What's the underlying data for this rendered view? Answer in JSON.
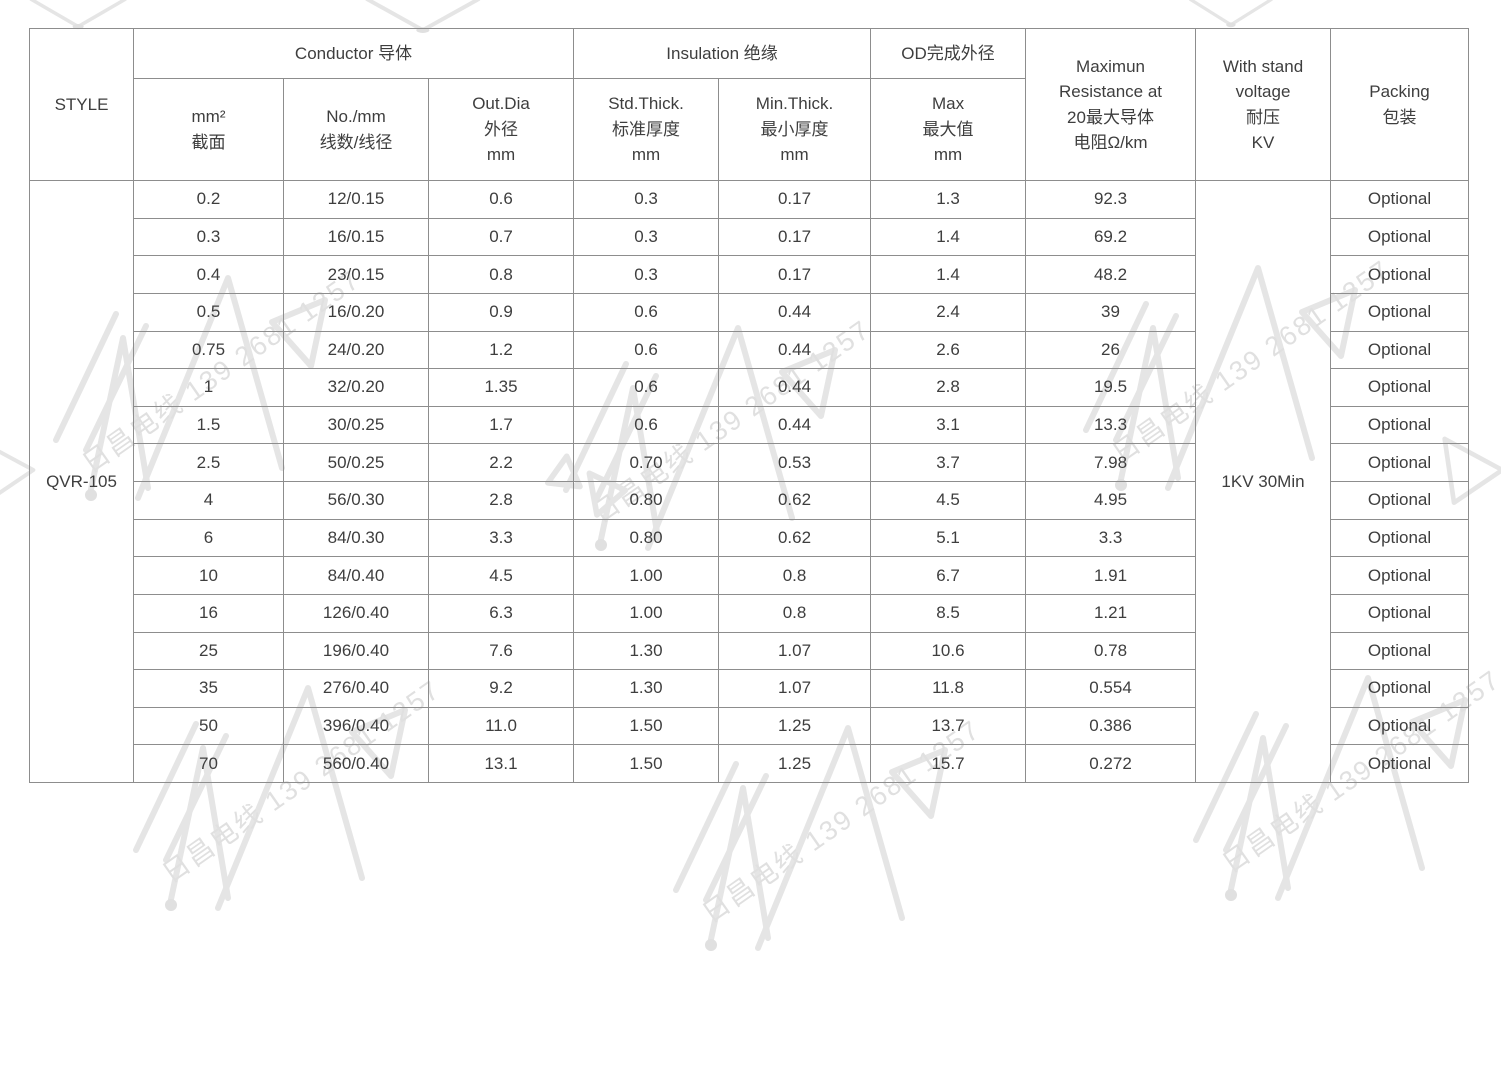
{
  "watermark": {
    "text": "日昌电线 139 2681 1257",
    "color": "#e0e0e0"
  },
  "table": {
    "header": {
      "style": "STYLE",
      "conductor_group": "Conductor 导体",
      "insulation_group": "Insulation 绝缘",
      "od_group": "OD完成外径",
      "mm2": "mm²\n截面",
      "no_mm": "No./mm\n线数/线径",
      "out_dia": "Out.Dia\n外径\nmm",
      "std_thick": "Std.Thick.\n标准厚度\nmm",
      "min_thick": "Min.Thick.\n最小厚度\nmm",
      "od_max": "Max\n最大值\nmm",
      "resistance": "Maximun\nResistance at\n20最大导体\n电阻Ω/km",
      "withstand": "With stand\nvoltage\n耐压\nKV",
      "packing": "Packing\n包装"
    },
    "style_value": "QVR-105",
    "withstand_value": "1KV 30Min",
    "rows": [
      {
        "mm2": "0.2",
        "no_mm": "12/0.15",
        "out_dia": "0.6",
        "std_thick": "0.3",
        "min_thick": "0.17",
        "od_max": "1.3",
        "resistance": "92.3",
        "packing": "Optional"
      },
      {
        "mm2": "0.3",
        "no_mm": "16/0.15",
        "out_dia": "0.7",
        "std_thick": "0.3",
        "min_thick": "0.17",
        "od_max": "1.4",
        "resistance": "69.2",
        "packing": "Optional"
      },
      {
        "mm2": "0.4",
        "no_mm": "23/0.15",
        "out_dia": "0.8",
        "std_thick": "0.3",
        "min_thick": "0.17",
        "od_max": "1.4",
        "resistance": "48.2",
        "packing": "Optional"
      },
      {
        "mm2": "0.5",
        "no_mm": "16/0.20",
        "out_dia": "0.9",
        "std_thick": "0.6",
        "min_thick": "0.44",
        "od_max": "2.4",
        "resistance": "39",
        "packing": "Optional"
      },
      {
        "mm2": "0.75",
        "no_mm": "24/0.20",
        "out_dia": "1.2",
        "std_thick": "0.6",
        "min_thick": "0.44",
        "od_max": "2.6",
        "resistance": "26",
        "packing": "Optional"
      },
      {
        "mm2": "1",
        "no_mm": "32/0.20",
        "out_dia": "1.35",
        "std_thick": "0.6",
        "min_thick": "0.44",
        "od_max": "2.8",
        "resistance": "19.5",
        "packing": "Optional"
      },
      {
        "mm2": "1.5",
        "no_mm": "30/0.25",
        "out_dia": "1.7",
        "std_thick": "0.6",
        "min_thick": "0.44",
        "od_max": "3.1",
        "resistance": "13.3",
        "packing": "Optional"
      },
      {
        "mm2": "2.5",
        "no_mm": "50/0.25",
        "out_dia": "2.2",
        "std_thick": "0.70",
        "min_thick": "0.53",
        "od_max": "3.7",
        "resistance": "7.98",
        "packing": "Optional"
      },
      {
        "mm2": "4",
        "no_mm": "56/0.30",
        "out_dia": "2.8",
        "std_thick": "0.80",
        "min_thick": "0.62",
        "od_max": "4.5",
        "resistance": "4.95",
        "packing": "Optional"
      },
      {
        "mm2": "6",
        "no_mm": "84/0.30",
        "out_dia": "3.3",
        "std_thick": "0.80",
        "min_thick": "0.62",
        "od_max": "5.1",
        "resistance": "3.3",
        "packing": "Optional"
      },
      {
        "mm2": "10",
        "no_mm": "84/0.40",
        "out_dia": "4.5",
        "std_thick": "1.00",
        "min_thick": "0.8",
        "od_max": "6.7",
        "resistance": "1.91",
        "packing": "Optional"
      },
      {
        "mm2": "16",
        "no_mm": "126/0.40",
        "out_dia": "6.3",
        "std_thick": "1.00",
        "min_thick": "0.8",
        "od_max": "8.5",
        "resistance": "1.21",
        "packing": "Optional"
      },
      {
        "mm2": "25",
        "no_mm": "196/0.40",
        "out_dia": "7.6",
        "std_thick": "1.30",
        "min_thick": "1.07",
        "od_max": "10.6",
        "resistance": "0.78",
        "packing": "Optional"
      },
      {
        "mm2": "35",
        "no_mm": "276/0.40",
        "out_dia": "9.2",
        "std_thick": "1.30",
        "min_thick": "1.07",
        "od_max": "11.8",
        "resistance": "0.554",
        "packing": "Optional"
      },
      {
        "mm2": "50",
        "no_mm": "396/0.40",
        "out_dia": "11.0",
        "std_thick": "1.50",
        "min_thick": "1.25",
        "od_max": "13.7",
        "resistance": "0.386",
        "packing": "Optional"
      },
      {
        "mm2": "70",
        "no_mm": "560/0.40",
        "out_dia": "13.1",
        "std_thick": "1.50",
        "min_thick": "1.25",
        "od_max": "15.7",
        "resistance": "0.272",
        "packing": "Optional"
      }
    ]
  }
}
